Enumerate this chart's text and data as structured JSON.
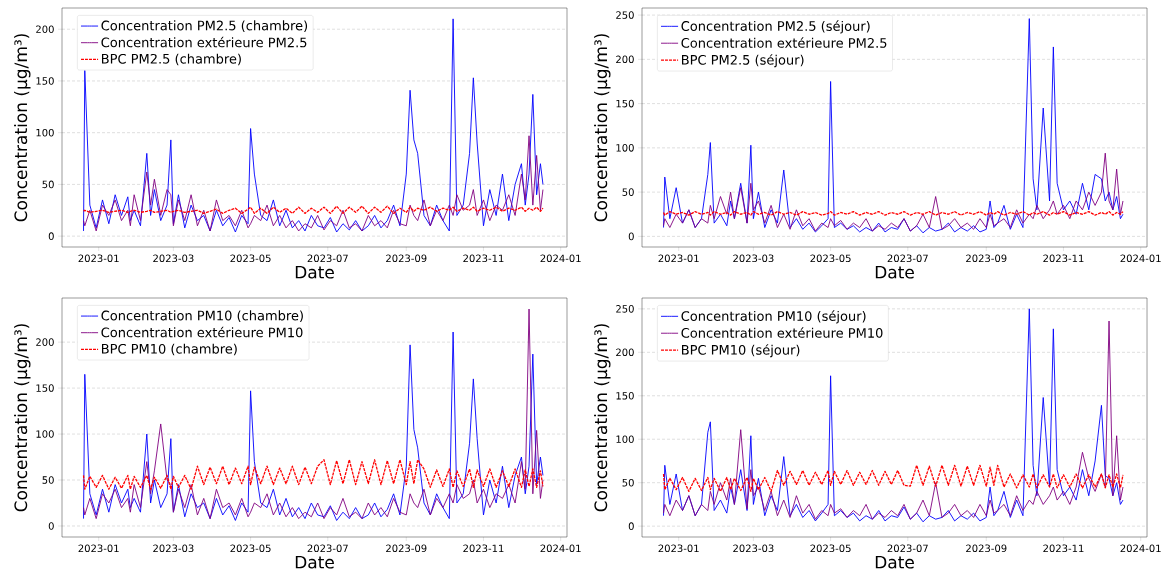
{
  "chart_data": [
    {
      "type": "line",
      "xlabel": "Date",
      "ylabel": "Concentration (µg/m³)",
      "grid": "y",
      "legend": "top left",
      "x": [
        "2022-12-20",
        "2022-12-21",
        "2022-12-25",
        "2022-12-30",
        "2023-01-04",
        "2023-01-09",
        "2023-01-14",
        "2023-01-19",
        "2023-01-24",
        "2023-01-26",
        "2023-01-29",
        "2023-02-03",
        "2023-02-08",
        "2023-02-11",
        "2023-02-14",
        "2023-02-19",
        "2023-02-24",
        "2023-02-27",
        "2023-03-01",
        "2023-03-05",
        "2023-03-10",
        "2023-03-15",
        "2023-03-20",
        "2023-03-25",
        "2023-03-30",
        "2023-04-04",
        "2023-04-09",
        "2023-04-14",
        "2023-04-19",
        "2023-04-24",
        "2023-04-29",
        "2023-05-01",
        "2023-05-04",
        "2023-05-09",
        "2023-05-14",
        "2023-05-19",
        "2023-05-24",
        "2023-05-29",
        "2023-06-03",
        "2023-06-08",
        "2023-06-13",
        "2023-06-18",
        "2023-06-23",
        "2023-06-28",
        "2023-07-03",
        "2023-07-08",
        "2023-07-13",
        "2023-07-18",
        "2023-07-23",
        "2023-07-28",
        "2023-08-02",
        "2023-08-07",
        "2023-08-12",
        "2023-08-17",
        "2023-08-22",
        "2023-08-27",
        "2023-09-01",
        "2023-09-04",
        "2023-09-07",
        "2023-09-10",
        "2023-09-15",
        "2023-09-20",
        "2023-09-25",
        "2023-09-30",
        "2023-10-05",
        "2023-10-08",
        "2023-10-11",
        "2023-10-16",
        "2023-10-21",
        "2023-10-24",
        "2023-10-27",
        "2023-11-01",
        "2023-11-06",
        "2023-11-11",
        "2023-11-16",
        "2023-11-21",
        "2023-11-26",
        "2023-12-01",
        "2023-12-04",
        "2023-12-07",
        "2023-12-10",
        "2023-12-13",
        "2023-12-16",
        "2023-12-18"
      ],
      "xlim": [
        "2022-12-03",
        "2024-01-06"
      ],
      "xticks": [
        "2023-01",
        "2023-03",
        "2023-05",
        "2023-07",
        "2023-09",
        "2023-11",
        "2024-01"
      ],
      "ylim": [
        -10.5,
        220.5
      ],
      "yticks": [
        0,
        50,
        100,
        150,
        200
      ],
      "series": [
        {
          "name": "Concentration PM2.5 (chambre)",
          "color": "#0000ff",
          "values": [
            5,
            160,
            30,
            8,
            35,
            12,
            40,
            20,
            38,
            15,
            25,
            10,
            80,
            20,
            45,
            15,
            30,
            93,
            12,
            40,
            8,
            30,
            15,
            20,
            5,
            25,
            10,
            18,
            4,
            20,
            12,
            104,
            60,
            20,
            15,
            35,
            10,
            25,
            8,
            15,
            5,
            20,
            10,
            8,
            18,
            4,
            12,
            6,
            15,
            5,
            10,
            20,
            8,
            15,
            30,
            10,
            60,
            141,
            93,
            80,
            20,
            10,
            30,
            15,
            5,
            210,
            20,
            30,
            80,
            153,
            90,
            10,
            45,
            20,
            60,
            15,
            50,
            70,
            30,
            60,
            137,
            40,
            70,
            50
          ]
        },
        {
          "name": "Concentration extérieure PM2.5",
          "color": "#800080",
          "values": [
            15,
            10,
            25,
            5,
            30,
            20,
            35,
            15,
            25,
            10,
            40,
            15,
            62,
            30,
            55,
            20,
            45,
            40,
            10,
            35,
            15,
            40,
            10,
            25,
            5,
            35,
            15,
            20,
            10,
            25,
            8,
            12,
            20,
            15,
            30,
            10,
            20,
            8,
            15,
            5,
            12,
            8,
            20,
            6,
            15,
            10,
            25,
            8,
            12,
            5,
            20,
            10,
            15,
            8,
            25,
            12,
            10,
            30,
            20,
            15,
            35,
            10,
            25,
            15,
            30,
            20,
            40,
            25,
            30,
            45,
            20,
            35,
            15,
            30,
            25,
            40,
            20,
            60,
            35,
            97,
            30,
            78,
            25,
            45
          ]
        },
        {
          "name": "BPC PM2.5 (chambre)",
          "color": "#ff0000",
          "line_style": "dashed",
          "values": [
            24,
            25,
            23,
            24,
            25,
            23,
            24,
            25,
            23,
            24,
            25,
            23,
            24,
            25,
            23,
            24,
            25,
            23,
            24,
            25,
            23,
            24,
            25,
            22,
            24,
            26,
            22,
            25,
            27,
            22,
            26,
            28,
            22,
            27,
            22,
            28,
            23,
            27,
            22,
            28,
            22,
            27,
            23,
            28,
            22,
            29,
            22,
            28,
            23,
            29,
            22,
            28,
            23,
            29,
            22,
            27,
            23,
            28,
            24,
            27,
            25,
            28,
            24,
            27,
            25,
            28,
            24,
            27,
            25,
            28,
            24,
            27,
            25,
            28,
            24,
            27,
            25,
            28,
            24,
            27,
            25,
            28,
            24,
            27
          ]
        }
      ]
    },
    {
      "type": "line",
      "xlabel": "Date",
      "ylabel": "Concentration (µg/m³)",
      "grid": "y",
      "legend": "top left",
      "x": [
        "2022-12-20",
        "2022-12-21",
        "2022-12-25",
        "2022-12-30",
        "2023-01-04",
        "2023-01-09",
        "2023-01-14",
        "2023-01-19",
        "2023-01-24",
        "2023-01-26",
        "2023-01-29",
        "2023-02-03",
        "2023-02-08",
        "2023-02-11",
        "2023-02-14",
        "2023-02-19",
        "2023-02-24",
        "2023-02-27",
        "2023-03-01",
        "2023-03-05",
        "2023-03-10",
        "2023-03-15",
        "2023-03-20",
        "2023-03-25",
        "2023-03-30",
        "2023-04-04",
        "2023-04-09",
        "2023-04-14",
        "2023-04-19",
        "2023-04-24",
        "2023-04-29",
        "2023-05-01",
        "2023-05-04",
        "2023-05-09",
        "2023-05-14",
        "2023-05-19",
        "2023-05-24",
        "2023-05-29",
        "2023-06-03",
        "2023-06-08",
        "2023-06-13",
        "2023-06-18",
        "2023-06-23",
        "2023-06-28",
        "2023-07-03",
        "2023-07-08",
        "2023-07-13",
        "2023-07-18",
        "2023-07-23",
        "2023-07-28",
        "2023-08-02",
        "2023-08-07",
        "2023-08-12",
        "2023-08-17",
        "2023-08-22",
        "2023-08-27",
        "2023-09-01",
        "2023-09-04",
        "2023-09-07",
        "2023-09-10",
        "2023-09-15",
        "2023-09-20",
        "2023-09-25",
        "2023-09-30",
        "2023-10-05",
        "2023-10-08",
        "2023-10-11",
        "2023-10-16",
        "2023-10-21",
        "2023-10-24",
        "2023-10-27",
        "2023-11-01",
        "2023-11-06",
        "2023-11-11",
        "2023-11-16",
        "2023-11-21",
        "2023-11-26",
        "2023-12-01",
        "2023-12-04",
        "2023-12-07",
        "2023-12-10",
        "2023-12-13",
        "2023-12-16",
        "2023-12-18"
      ],
      "xlim": [
        "2022-12-03",
        "2024-01-06"
      ],
      "xticks": [
        "2023-01",
        "2023-03",
        "2023-05",
        "2023-07",
        "2023-09",
        "2023-11",
        "2024-01"
      ],
      "ylim": [
        -12,
        258
      ],
      "yticks": [
        0,
        50,
        100,
        150,
        200,
        250
      ],
      "series": [
        {
          "name": "Concentration PM2.5 (séjour)",
          "color": "#0000ff",
          "values": [
            10,
            67,
            20,
            55,
            15,
            30,
            10,
            20,
            70,
            106,
            15,
            25,
            12,
            40,
            20,
            60,
            15,
            103,
            20,
            50,
            10,
            30,
            15,
            75,
            10,
            20,
            8,
            15,
            5,
            12,
            20,
            175,
            10,
            15,
            8,
            12,
            5,
            10,
            6,
            15,
            5,
            10,
            8,
            20,
            6,
            12,
            4,
            10,
            6,
            8,
            15,
            5,
            10,
            6,
            12,
            5,
            8,
            40,
            10,
            15,
            35,
            8,
            25,
            10,
            246,
            65,
            30,
            145,
            40,
            214,
            60,
            30,
            40,
            25,
            60,
            30,
            70,
            65,
            40,
            50,
            30,
            45,
            20,
            25
          ]
        },
        {
          "name": "Concentration extérieure PM2.5",
          "color": "#800080",
          "values": [
            12,
            20,
            10,
            25,
            15,
            30,
            10,
            20,
            15,
            35,
            20,
            45,
            25,
            50,
            20,
            55,
            15,
            60,
            30,
            40,
            15,
            35,
            10,
            25,
            8,
            30,
            12,
            20,
            6,
            15,
            10,
            20,
            12,
            18,
            8,
            15,
            10,
            20,
            6,
            12,
            8,
            15,
            10,
            20,
            6,
            12,
            25,
            10,
            45,
            8,
            12,
            20,
            10,
            15,
            8,
            20,
            10,
            25,
            12,
            15,
            20,
            10,
            30,
            15,
            25,
            20,
            35,
            20,
            30,
            40,
            25,
            35,
            20,
            40,
            30,
            50,
            35,
            50,
            94,
            40,
            30,
            76,
            25,
            40
          ]
        },
        {
          "name": "BPC PM2.5 (séjour)",
          "color": "#ff0000",
          "line_style": "dashed",
          "values": [
            27,
            24,
            28,
            25,
            27,
            24,
            28,
            25,
            27,
            24,
            28,
            25,
            27,
            24,
            28,
            25,
            27,
            24,
            28,
            25,
            27,
            24,
            28,
            25,
            27,
            24,
            28,
            25,
            27,
            24,
            26,
            28,
            24,
            27,
            25,
            28,
            24,
            27,
            25,
            28,
            24,
            27,
            25,
            28,
            24,
            27,
            25,
            28,
            24,
            27,
            25,
            28,
            24,
            27,
            25,
            28,
            24,
            27,
            25,
            28,
            24,
            27,
            25,
            28,
            24,
            27,
            25,
            28,
            24,
            27,
            25,
            28,
            24,
            27,
            25,
            28,
            24,
            27,
            25,
            28,
            24,
            27,
            25,
            28
          ]
        }
      ]
    },
    {
      "type": "line",
      "xlabel": "Date",
      "ylabel": "Concentration (µg/m³)",
      "grid": "y",
      "legend": "top left",
      "x": [
        "2022-12-20",
        "2022-12-21",
        "2022-12-25",
        "2022-12-30",
        "2023-01-04",
        "2023-01-09",
        "2023-01-14",
        "2023-01-19",
        "2023-01-24",
        "2023-01-26",
        "2023-01-29",
        "2023-02-03",
        "2023-02-08",
        "2023-02-11",
        "2023-02-14",
        "2023-02-19",
        "2023-02-24",
        "2023-02-27",
        "2023-03-01",
        "2023-03-05",
        "2023-03-10",
        "2023-03-15",
        "2023-03-20",
        "2023-03-25",
        "2023-03-30",
        "2023-04-04",
        "2023-04-09",
        "2023-04-14",
        "2023-04-19",
        "2023-04-24",
        "2023-04-29",
        "2023-05-01",
        "2023-05-04",
        "2023-05-09",
        "2023-05-14",
        "2023-05-19",
        "2023-05-24",
        "2023-05-29",
        "2023-06-03",
        "2023-06-08",
        "2023-06-13",
        "2023-06-18",
        "2023-06-23",
        "2023-06-28",
        "2023-07-03",
        "2023-07-08",
        "2023-07-13",
        "2023-07-18",
        "2023-07-23",
        "2023-07-28",
        "2023-08-02",
        "2023-08-07",
        "2023-08-12",
        "2023-08-17",
        "2023-08-22",
        "2023-08-27",
        "2023-09-01",
        "2023-09-04",
        "2023-09-07",
        "2023-09-10",
        "2023-09-15",
        "2023-09-20",
        "2023-09-25",
        "2023-09-30",
        "2023-10-05",
        "2023-10-08",
        "2023-10-11",
        "2023-10-16",
        "2023-10-21",
        "2023-10-24",
        "2023-10-27",
        "2023-11-01",
        "2023-11-06",
        "2023-11-11",
        "2023-11-16",
        "2023-11-21",
        "2023-11-26",
        "2023-12-01",
        "2023-12-04",
        "2023-12-07",
        "2023-12-10",
        "2023-12-13",
        "2023-12-16",
        "2023-12-18"
      ],
      "xlim": [
        "2022-12-03",
        "2024-01-06"
      ],
      "xticks": [
        "2023-01",
        "2023-03",
        "2023-05",
        "2023-07",
        "2023-09",
        "2023-11",
        "2024-01"
      ],
      "ylim": [
        -12,
        248
      ],
      "yticks": [
        0,
        50,
        100,
        150,
        200
      ],
      "series": [
        {
          "name": "Concentration PM10 (chambre)",
          "color": "#0000ff",
          "values": [
            8,
            165,
            35,
            12,
            40,
            15,
            45,
            25,
            40,
            20,
            30,
            15,
            100,
            25,
            50,
            20,
            35,
            95,
            15,
            45,
            10,
            35,
            20,
            25,
            8,
            30,
            12,
            22,
            6,
            25,
            15,
            147,
            70,
            25,
            20,
            40,
            12,
            30,
            10,
            20,
            8,
            25,
            12,
            10,
            22,
            6,
            15,
            8,
            20,
            8,
            12,
            25,
            10,
            18,
            35,
            12,
            65,
            197,
            105,
            85,
            25,
            12,
            35,
            20,
            8,
            211,
            25,
            35,
            90,
            160,
            95,
            12,
            50,
            25,
            65,
            20,
            55,
            75,
            35,
            65,
            187,
            45,
            75,
            55
          ]
        },
        {
          "name": "Concentration extérieure PM10",
          "color": "#800080",
          "values": [
            20,
            12,
            30,
            8,
            35,
            25,
            40,
            20,
            30,
            15,
            45,
            20,
            70,
            35,
            60,
            111,
            50,
            45,
            15,
            40,
            20,
            45,
            12,
            30,
            8,
            40,
            20,
            25,
            12,
            30,
            10,
            15,
            25,
            20,
            35,
            12,
            25,
            10,
            20,
            8,
            15,
            10,
            25,
            8,
            20,
            12,
            30,
            10,
            15,
            8,
            25,
            12,
            20,
            10,
            30,
            15,
            12,
            35,
            25,
            20,
            40,
            12,
            30,
            20,
            35,
            25,
            45,
            30,
            35,
            50,
            25,
            40,
            20,
            35,
            30,
            45,
            25,
            70,
            40,
            236,
            35,
            104,
            30,
            50
          ]
        },
        {
          "name": "BPC PM10 (chambre)",
          "color": "#ff0000",
          "line_style": "dashed",
          "values": [
            55,
            40,
            54,
            42,
            55,
            40,
            53,
            41,
            55,
            40,
            54,
            42,
            55,
            40,
            53,
            41,
            55,
            40,
            54,
            42,
            55,
            40,
            65,
            45,
            64,
            46,
            65,
            45,
            63,
            46,
            65,
            45,
            64,
            46,
            65,
            45,
            63,
            46,
            65,
            45,
            64,
            46,
            65,
            72,
            45,
            71,
            46,
            72,
            45,
            70,
            46,
            72,
            45,
            71,
            46,
            72,
            45,
            70,
            46,
            72,
            62,
            42,
            61,
            43,
            62,
            42,
            60,
            43,
            62,
            42,
            61,
            43,
            62,
            42,
            60,
            43,
            62,
            42,
            61,
            43,
            62,
            42,
            60,
            43
          ]
        }
      ]
    },
    {
      "type": "line",
      "xlabel": "Date",
      "ylabel": "Concentration (µg/m³)",
      "grid": "y",
      "legend": "top left",
      "x": [
        "2022-12-20",
        "2022-12-21",
        "2022-12-25",
        "2022-12-30",
        "2023-01-04",
        "2023-01-09",
        "2023-01-14",
        "2023-01-19",
        "2023-01-24",
        "2023-01-26",
        "2023-01-29",
        "2023-02-03",
        "2023-02-08",
        "2023-02-11",
        "2023-02-14",
        "2023-02-19",
        "2023-02-24",
        "2023-02-27",
        "2023-03-01",
        "2023-03-05",
        "2023-03-10",
        "2023-03-15",
        "2023-03-20",
        "2023-03-25",
        "2023-03-30",
        "2023-04-04",
        "2023-04-09",
        "2023-04-14",
        "2023-04-19",
        "2023-04-24",
        "2023-04-29",
        "2023-05-01",
        "2023-05-04",
        "2023-05-09",
        "2023-05-14",
        "2023-05-19",
        "2023-05-24",
        "2023-05-29",
        "2023-06-03",
        "2023-06-08",
        "2023-06-13",
        "2023-06-18",
        "2023-06-23",
        "2023-06-28",
        "2023-07-03",
        "2023-07-08",
        "2023-07-13",
        "2023-07-18",
        "2023-07-23",
        "2023-07-28",
        "2023-08-02",
        "2023-08-07",
        "2023-08-12",
        "2023-08-17",
        "2023-08-22",
        "2023-08-27",
        "2023-09-01",
        "2023-09-04",
        "2023-09-07",
        "2023-09-10",
        "2023-09-15",
        "2023-09-20",
        "2023-09-25",
        "2023-09-30",
        "2023-10-05",
        "2023-10-08",
        "2023-10-11",
        "2023-10-16",
        "2023-10-21",
        "2023-10-24",
        "2023-10-27",
        "2023-11-01",
        "2023-11-06",
        "2023-11-11",
        "2023-11-16",
        "2023-11-21",
        "2023-11-26",
        "2023-12-01",
        "2023-12-04",
        "2023-12-07",
        "2023-12-10",
        "2023-12-13",
        "2023-12-16",
        "2023-12-18"
      ],
      "xlim": [
        "2022-12-03",
        "2024-01-06"
      ],
      "xticks": [
        "2023-01",
        "2023-03",
        "2023-05",
        "2023-07",
        "2023-09",
        "2023-11",
        "2024-01"
      ],
      "ylim": [
        -12.5,
        262.5
      ],
      "yticks": [
        0,
        50,
        100,
        150,
        200,
        250
      ],
      "series": [
        {
          "name": "Concentration PM10 (séjour)",
          "color": "#0000ff",
          "values": [
            12,
            70,
            25,
            60,
            18,
            35,
            12,
            25,
            108,
            120,
            18,
            30,
            15,
            45,
            25,
            65,
            18,
            104,
            25,
            55,
            12,
            35,
            18,
            80,
            12,
            25,
            10,
            18,
            6,
            15,
            25,
            173,
            12,
            18,
            10,
            15,
            6,
            12,
            8,
            18,
            6,
            12,
            10,
            22,
            8,
            15,
            5,
            12,
            8,
            10,
            18,
            6,
            12,
            8,
            15,
            6,
            10,
            45,
            12,
            18,
            40,
            10,
            30,
            12,
            250,
            70,
            35,
            148,
            45,
            227,
            65,
            35,
            45,
            30,
            65,
            35,
            75,
            139,
            58,
            55,
            35,
            50,
            25,
            30
          ]
        },
        {
          "name": "Concentration extérieure PM10",
          "color": "#800080",
          "values": [
            15,
            25,
            12,
            30,
            18,
            35,
            12,
            25,
            18,
            40,
            25,
            50,
            30,
            55,
            25,
            111,
            20,
            65,
            35,
            45,
            18,
            40,
            12,
            30,
            10,
            35,
            15,
            25,
            8,
            18,
            12,
            25,
            15,
            20,
            10,
            18,
            12,
            25,
            8,
            15,
            10,
            18,
            12,
            25,
            8,
            15,
            30,
            12,
            50,
            10,
            15,
            25,
            12,
            18,
            10,
            25,
            12,
            30,
            15,
            18,
            25,
            12,
            35,
            18,
            30,
            25,
            40,
            25,
            35,
            45,
            30,
            40,
            25,
            45,
            85,
            55,
            40,
            60,
            45,
            236,
            35,
            104,
            30,
            45
          ]
        },
        {
          "name": "BPC PM10 (séjour)",
          "color": "#ff0000",
          "line_style": "dashed",
          "values": [
            60,
            42,
            55,
            42,
            56,
            40,
            55,
            41,
            56,
            42,
            55,
            40,
            56,
            42,
            55,
            41,
            56,
            40,
            55,
            42,
            56,
            40,
            64,
            47,
            63,
            48,
            64,
            47,
            62,
            48,
            64,
            47,
            63,
            48,
            64,
            47,
            62,
            48,
            64,
            47,
            63,
            48,
            64,
            47,
            46,
            70,
            47,
            69,
            46,
            70,
            47,
            70,
            46,
            69,
            47,
            70,
            46,
            68,
            47,
            70,
            45,
            60,
            44,
            59,
            45,
            60,
            44,
            59,
            45,
            60,
            44,
            59,
            45,
            60,
            44,
            59,
            45,
            60,
            44,
            59,
            45,
            60,
            44,
            59
          ]
        }
      ]
    }
  ]
}
